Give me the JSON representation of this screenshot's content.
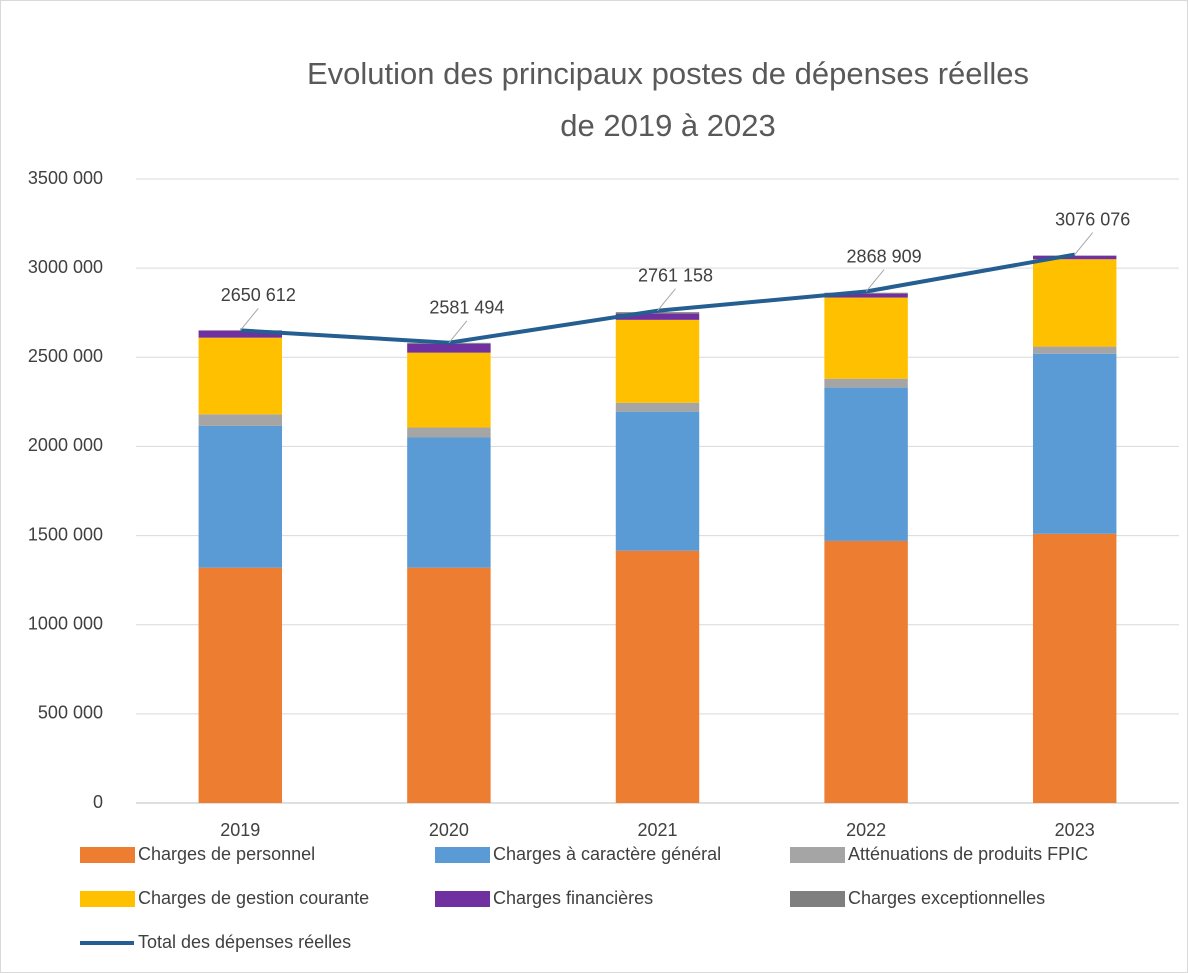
{
  "chart_data": {
    "type": "bar",
    "stacked": true,
    "title": "Evolution des principaux postes de dépenses réelles",
    "subtitle": "de 2019 à 2023",
    "categories": [
      "2019",
      "2020",
      "2021",
      "2022",
      "2023"
    ],
    "ylim": [
      0,
      3500000
    ],
    "yticks": [
      0,
      {
        "value": 500000,
        "label": "500 000"
      },
      {
        "value": 1000000,
        "label": "1000 000"
      },
      {
        "value": 1500000,
        "label": "1500 000"
      },
      {
        "value": 2000000,
        "label": "2000 000"
      },
      {
        "value": 2500000,
        "label": "2500 000"
      },
      {
        "value": 3000000,
        "label": "3000 000"
      },
      {
        "value": 3500000,
        "label": "3500 000"
      }
    ],
    "grid": true,
    "legend": "bottom",
    "series": [
      {
        "name": "Charges de personnel",
        "color": "#ED7D31",
        "values": [
          1320000,
          1320000,
          1415000,
          1470000,
          1510000
        ]
      },
      {
        "name": "Charges à caractère général",
        "color": "#5B9BD5",
        "values": [
          795000,
          730000,
          780000,
          860000,
          1010000
        ]
      },
      {
        "name": "Atténuations de produits FPIC",
        "color": "#A5A5A5",
        "values": [
          65000,
          56000,
          50000,
          50000,
          40000
        ]
      },
      {
        "name": "Charges de gestion courante",
        "color": "#FFC000",
        "values": [
          430000,
          420000,
          465000,
          455000,
          490000
        ]
      },
      {
        "name": "Charges financières",
        "color": "#7030A0",
        "values": [
          40000,
          50000,
          35000,
          22000,
          20000
        ]
      },
      {
        "name": "Charges exceptionnelles",
        "color": "#7F7F7F",
        "values": [
          1000,
          5000,
          8000,
          5000,
          1000
        ]
      },
      {
        "name": "Total des dépenses réelles",
        "color": "#255E91",
        "type": "line",
        "values": [
          2650612,
          2581494,
          2761158,
          2868909,
          3076076
        ],
        "value_labels": [
          "2650 612",
          "2581 494",
          "2761 158",
          "2868 909",
          "3076 076"
        ]
      }
    ]
  }
}
